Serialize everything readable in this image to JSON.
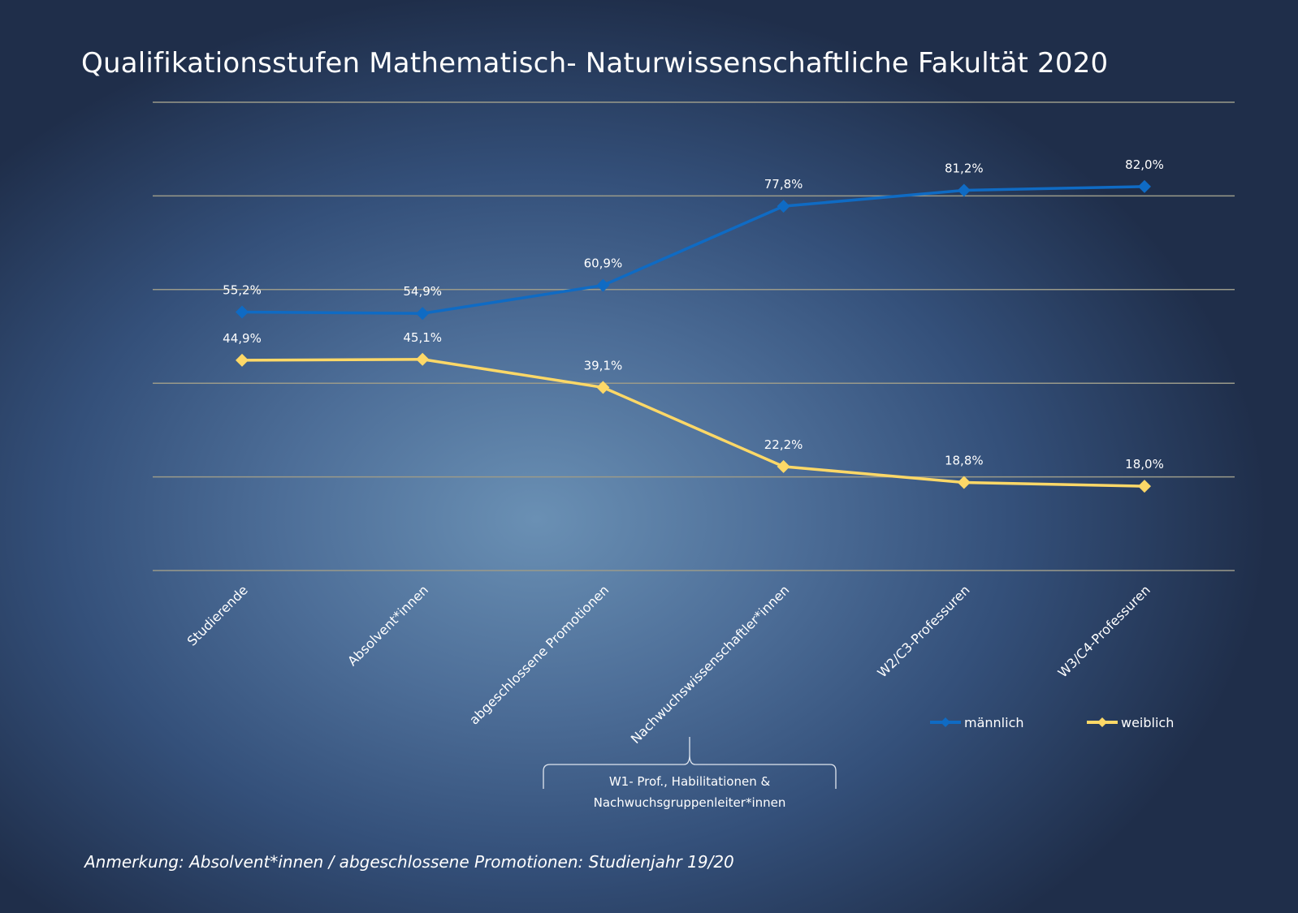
{
  "chart_data": {
    "type": "line",
    "title": "Qualifikationsstufen Mathematisch- Naturwissenschaftliche Fakultät 2020",
    "categories": [
      "Studierende",
      "Absolvent*innen",
      "abgeschlossene Promotionen",
      "Nachwuchswissenschaftler*innen",
      "W2/C3-Professuren",
      "W3/C4-Professuren"
    ],
    "series": [
      {
        "name": "männlich",
        "color": "#0f6bc4",
        "values": [
          55.2,
          54.9,
          60.9,
          77.8,
          81.2,
          82.0
        ],
        "labels": [
          "55,2%",
          "54,9%",
          "60,9%",
          "77,8%",
          "81,2%",
          "82,0%"
        ]
      },
      {
        "name": "weiblich",
        "color": "#fdd867",
        "values": [
          44.9,
          45.1,
          39.1,
          22.2,
          18.8,
          18.0
        ],
        "labels": [
          "44,9%",
          "45,1%",
          "39,1%",
          "22,2%",
          "18,8%",
          "18,0%"
        ]
      }
    ],
    "ylim": [
      0,
      100
    ],
    "yticks": [
      0,
      20,
      40,
      60,
      80,
      100
    ],
    "grid": true,
    "legend": "bottom-right",
    "annotation": "W1- Prof., Habilitationen & Nachwuchsgruppenleiter*innen",
    "annotation_lines": [
      "W1- Prof., Habilitationen &",
      "Nachwuchsgruppenleiter*innen"
    ]
  },
  "note": "Anmerkung: Absolvent*innen / abgeschlossene Promotionen: Studienjahr 19/20"
}
